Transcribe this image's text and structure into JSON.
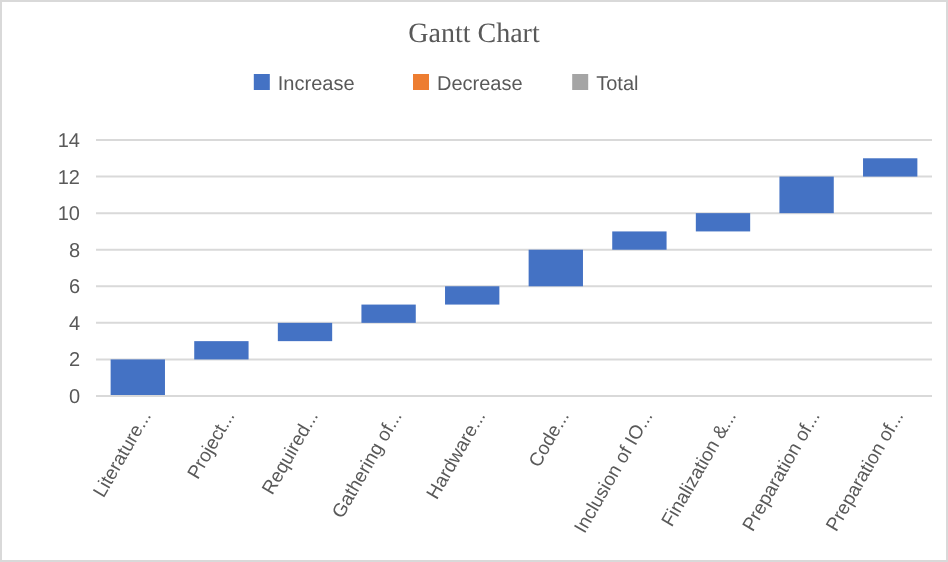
{
  "chart_data": {
    "type": "bar",
    "title": "Gantt Chart",
    "categories": [
      "Literature...",
      "Project...",
      "Required...",
      "Gathering of...",
      "Hardware...",
      "Code...",
      "Inclusion of IO...",
      "Finalization &...",
      "Preparation of...",
      "Preparation of..."
    ],
    "series": [
      {
        "name": "Increase",
        "color": "#4472c4",
        "base": [
          0,
          2,
          3,
          4,
          5,
          6,
          8,
          9,
          10,
          12
        ],
        "values": [
          2,
          1,
          1,
          1,
          1,
          2,
          1,
          1,
          2,
          1
        ]
      },
      {
        "name": "Decrease",
        "color": "#ed7d31",
        "values": [
          null,
          null,
          null,
          null,
          null,
          null,
          null,
          null,
          null,
          null
        ]
      },
      {
        "name": "Total",
        "color": "#a5a5a5",
        "values": [
          null,
          null,
          null,
          null,
          null,
          null,
          null,
          null,
          null,
          null
        ]
      }
    ],
    "ylim": [
      0,
      14
    ],
    "yticks": [
      0,
      2,
      4,
      6,
      8,
      10,
      12,
      14
    ],
    "grid": "y",
    "legend": "top"
  }
}
